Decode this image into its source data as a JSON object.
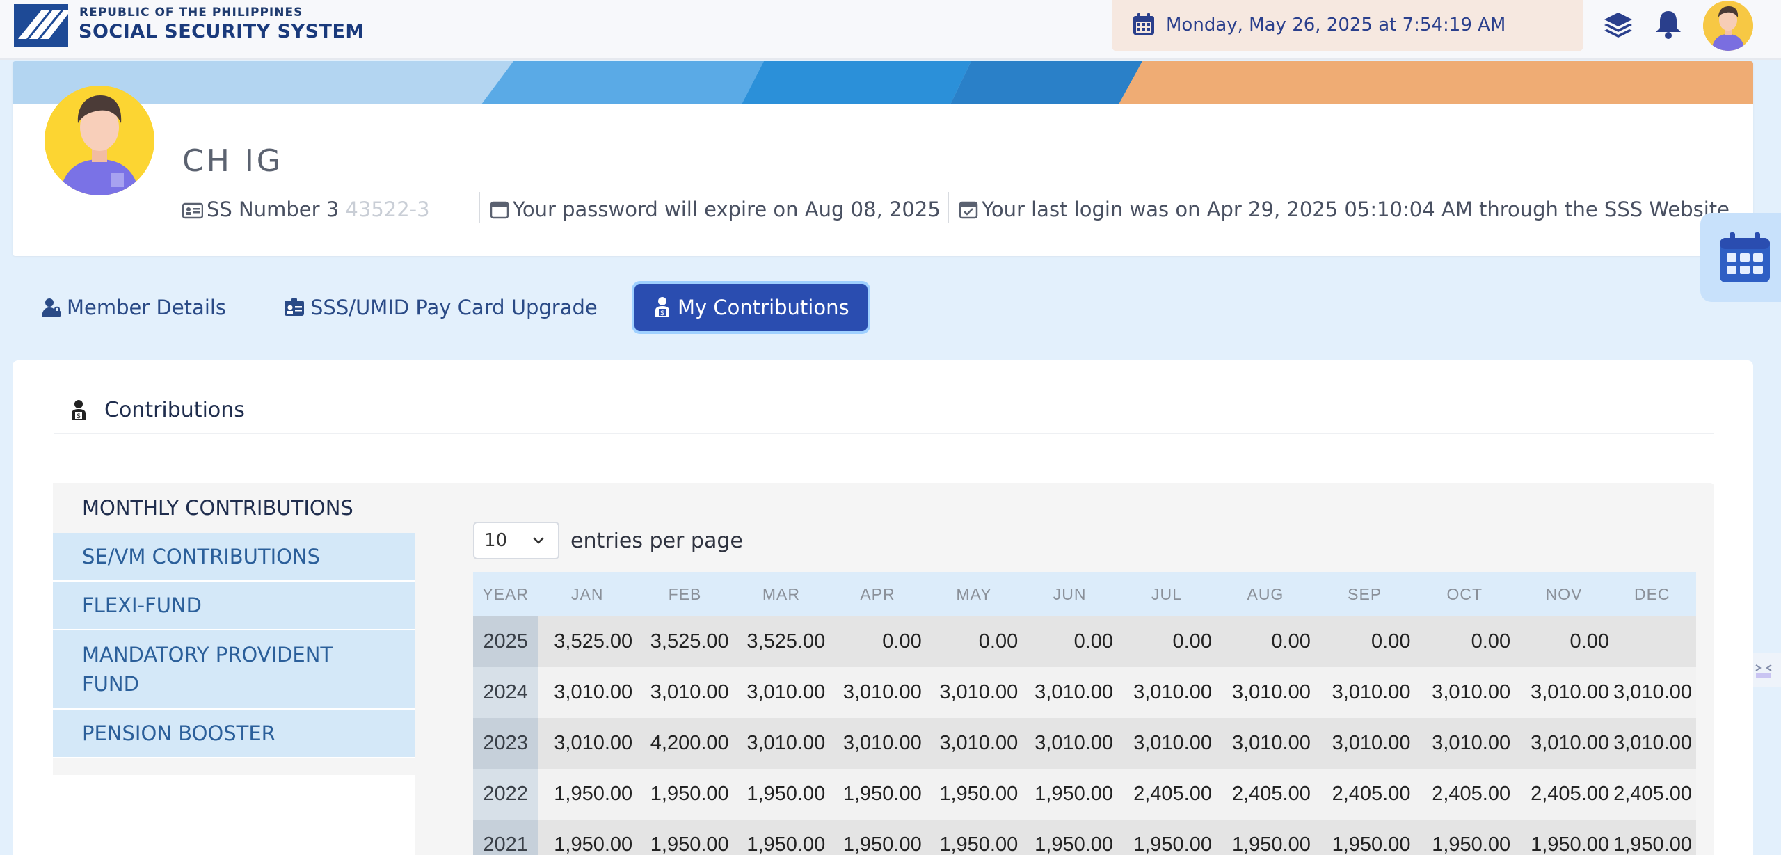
{
  "header": {
    "brand_small": "REPUBLIC OF THE PHILIPPINES",
    "brand_big": "SOCIAL SECURITY SYSTEM",
    "datetime": "Monday, May 26, 2025 at 7:54:19 AM"
  },
  "profile": {
    "name_start": "CH",
    "name_end": "IG",
    "ss_label": "SS Number",
    "ss_start": "3",
    "ss_blur": "    ",
    "ss_end": "43522-3",
    "password_text": "Your password will expire on Aug 08, 2025",
    "last_login_text": "Your last login was on Apr 29, 2025 05:10:04 AM through the SSS Website"
  },
  "tabs": [
    {
      "label": "Member Details"
    },
    {
      "label": "SSS/UMID Pay Card Upgrade"
    },
    {
      "label": "My Contributions"
    }
  ],
  "section": {
    "title": "Contributions"
  },
  "menu": {
    "heading": "MONTHLY CONTRIBUTIONS",
    "items": [
      {
        "label": "SE/VM CONTRIBUTIONS"
      },
      {
        "label": "FLEXI-FUND"
      },
      {
        "label": "MANDATORY PROVIDENT FUND"
      },
      {
        "label": "PENSION BOOSTER"
      }
    ]
  },
  "entries": {
    "value": "10",
    "label": "entries per page"
  },
  "table": {
    "columns": [
      "YEAR",
      "JAN",
      "FEB",
      "MAR",
      "APR",
      "MAY",
      "JUN",
      "JUL",
      "AUG",
      "SEP",
      "OCT",
      "NOV",
      "DEC"
    ],
    "rows": [
      [
        "2025",
        "3,525.00",
        "3,525.00",
        "3,525.00",
        "0.00",
        "0.00",
        "0.00",
        "0.00",
        "0.00",
        "0.00",
        "0.00",
        "0.00",
        ""
      ],
      [
        "2024",
        "3,010.00",
        "3,010.00",
        "3,010.00",
        "3,010.00",
        "3,010.00",
        "3,010.00",
        "3,010.00",
        "3,010.00",
        "3,010.00",
        "3,010.00",
        "3,010.00",
        "3,010.00"
      ],
      [
        "2023",
        "3,010.00",
        "4,200.00",
        "3,010.00",
        "3,010.00",
        "3,010.00",
        "3,010.00",
        "3,010.00",
        "3,010.00",
        "3,010.00",
        "3,010.00",
        "3,010.00",
        "3,010.00"
      ],
      [
        "2022",
        "1,950.00",
        "1,950.00",
        "1,950.00",
        "1,950.00",
        "1,950.00",
        "1,950.00",
        "2,405.00",
        "2,405.00",
        "2,405.00",
        "2,405.00",
        "2,405.00",
        "2,405.00"
      ],
      [
        "2021",
        "1,950.00",
        "1,950.00",
        "1,950.00",
        "1,950.00",
        "1,950.00",
        "1,950.00",
        "1,950.00",
        "1,950.00",
        "1,950.00",
        "1,950.00",
        "1,950.00",
        "1,950.00"
      ]
    ]
  },
  "colors": {
    "primary": "#2a4db0",
    "menu_bg": "#d4e8f8",
    "accent_orange": "#efac74",
    "page_bg": "#e3f0fc"
  },
  "icons": [
    "sss-logo-icon",
    "calendar-icon",
    "layers-icon",
    "bell-icon",
    "user-avatar",
    "id-card-icon",
    "calendar-small-icon",
    "calendar-check-icon",
    "user-lock-icon",
    "id-badge-icon",
    "contribution-icon",
    "chevron-down-icon"
  ]
}
